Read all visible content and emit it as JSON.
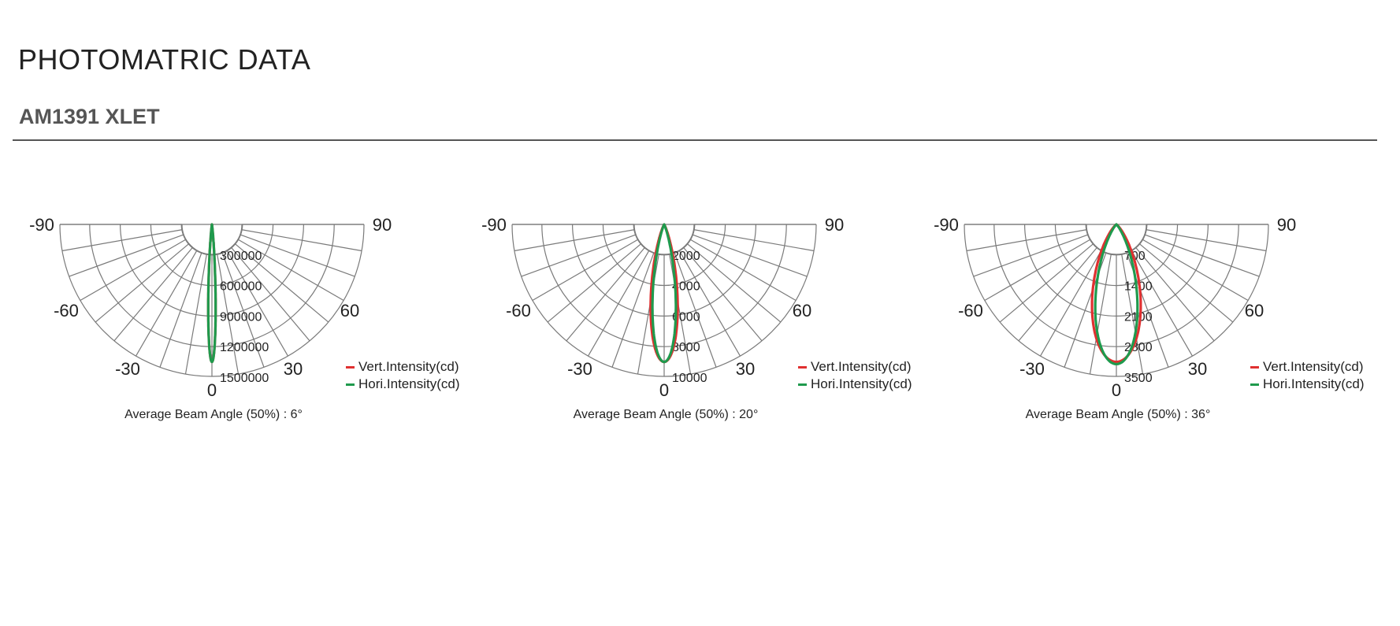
{
  "page": {
    "title": "PHOTOMATRIC DATA",
    "product": "AM1391 XLET"
  },
  "colors": {
    "vertical": "#e03030",
    "horizontal": "#1f9a4d",
    "grid": "#7a7a7a",
    "text": "#222222"
  },
  "chart_data": [
    {
      "type": "polar",
      "angle_ticks": [
        -90,
        -60,
        -30,
        0,
        30,
        60,
        90
      ],
      "rlim": [
        0,
        1800000
      ],
      "radial_ticks": [
        300000,
        600000,
        900000,
        1200000,
        1500000
      ],
      "radial_tick_labels": [
        "300000",
        "600000",
        "900000",
        "1200000",
        "1500000"
      ],
      "beam_angle_deg": 6,
      "caption": "Average Beam Angle (50%) : 6°",
      "series": [
        {
          "name": "Vert.Intensity(cd)",
          "color": "#e03030",
          "peak": 1350000,
          "beam_angle_deg": 6
        },
        {
          "name": "Hori.Intensity(cd)",
          "color": "#1f9a4d",
          "peak": 1350000,
          "beam_angle_deg": 6
        }
      ]
    },
    {
      "type": "polar",
      "angle_ticks": [
        -90,
        -60,
        -30,
        0,
        30,
        60,
        90
      ],
      "rlim": [
        0,
        12000
      ],
      "radial_ticks": [
        2000,
        4000,
        6000,
        8000,
        10000
      ],
      "radial_tick_labels": [
        "2000",
        "4000",
        "6000",
        "8000",
        "10000"
      ],
      "beam_angle_deg": 20,
      "caption": "Average Beam Angle (50%) : 20°",
      "series": [
        {
          "name": "Vert.Intensity(cd)",
          "color": "#e03030",
          "peak": 9000,
          "beam_angle_deg": 22
        },
        {
          "name": "Hori.Intensity(cd)",
          "color": "#1f9a4d",
          "peak": 9000,
          "beam_angle_deg": 19
        }
      ]
    },
    {
      "type": "polar",
      "angle_ticks": [
        -90,
        -60,
        -30,
        0,
        30,
        60,
        90
      ],
      "rlim": [
        0,
        4200
      ],
      "radial_ticks": [
        700,
        1400,
        2100,
        2800,
        3500
      ],
      "radial_tick_labels": [
        "700",
        "1400",
        "2100",
        "2800",
        "3500"
      ],
      "beam_angle_deg": 36,
      "caption": "Average Beam Angle (50%) : 36°",
      "series": [
        {
          "name": "Vert.Intensity(cd)",
          "color": "#e03030",
          "peak": 3150,
          "beam_angle_deg": 40
        },
        {
          "name": "Hori.Intensity(cd)",
          "color": "#1f9a4d",
          "peak": 3200,
          "beam_angle_deg": 34
        }
      ]
    }
  ]
}
